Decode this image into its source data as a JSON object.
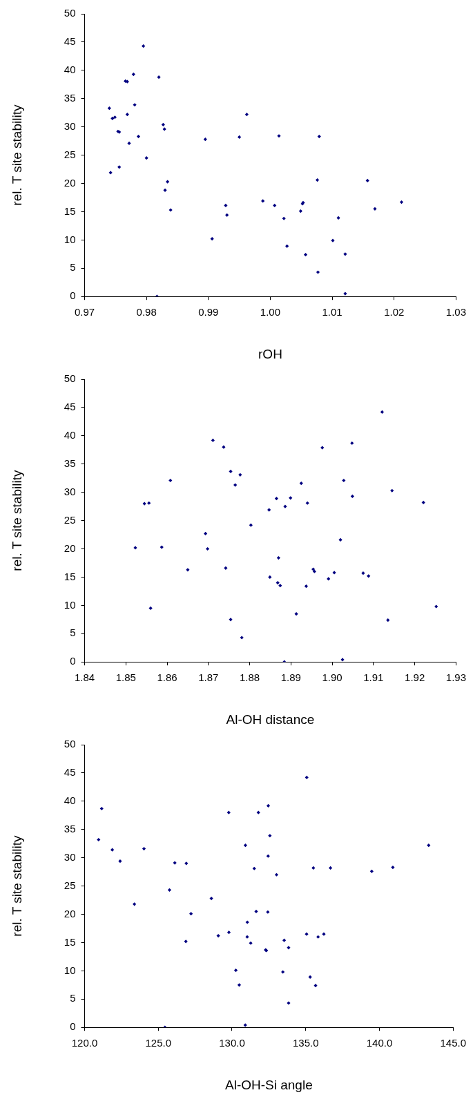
{
  "chart_data": [
    {
      "type": "scatter",
      "xlabel": "rOH",
      "ylabel": "rel. T site stability",
      "color": "#000080",
      "marker": "diamond",
      "grid": false,
      "legend": false,
      "x": [
        0.974,
        0.9745,
        0.9749,
        0.9742,
        0.9754,
        0.9756,
        0.9756,
        0.9766,
        0.9769,
        0.9769,
        0.9772,
        0.9779,
        0.9781,
        0.9787,
        0.9795,
        0.98,
        0.9817,
        0.982,
        0.9827,
        0.9829,
        0.983,
        0.9834,
        0.9839,
        0.9895,
        0.9906,
        0.9928,
        0.993,
        0.995,
        0.9962,
        0.9988,
        1.0007,
        1.0014,
        1.0022,
        1.0027,
        1.0049,
        1.0052,
        1.0053,
        1.0057,
        1.0076,
        1.0077,
        1.0079,
        1.0101,
        1.011,
        1.0121,
        1.0121,
        1.0157,
        1.0169,
        1.0212
      ],
      "values": [
        33.3,
        31.5,
        31.7,
        21.9,
        29.2,
        29.1,
        22.9,
        38.1,
        38.0,
        32.2,
        27.1,
        39.3,
        33.9,
        28.3,
        44.3,
        24.5,
        0,
        38.8,
        30.4,
        29.6,
        18.8,
        20.3,
        15.3,
        27.8,
        10.2,
        16.1,
        14.4,
        28.2,
        32.2,
        16.9,
        16.1,
        28.4,
        13.8,
        8.9,
        15.1,
        16.4,
        16.6,
        7.4,
        20.6,
        4.3,
        28.3,
        9.9,
        13.9,
        0.5,
        7.5,
        20.5,
        15.5,
        16.7
      ],
      "xlim": [
        0.97,
        1.03
      ],
      "xticks": [
        0.97,
        0.98,
        0.99,
        {
          "value": 1,
          "label": "1.00"
        },
        1.01,
        1.02,
        1.03
      ],
      "ylim": [
        0,
        50
      ],
      "yticks": [
        0,
        5,
        10,
        15,
        20,
        25,
        30,
        35,
        40,
        45,
        50
      ]
    },
    {
      "type": "scatter",
      "xlabel": "Al-OH distance",
      "ylabel": "rel. T site stability",
      "color": "#000080",
      "marker": "diamond",
      "grid": false,
      "legend": false,
      "x": [
        1.8523,
        1.8545,
        1.8556,
        1.856,
        1.8587,
        1.8608,
        1.865,
        1.8693,
        1.8698,
        1.8711,
        1.8737,
        1.8742,
        1.8754,
        1.8754,
        1.8765,
        1.8777,
        1.8781,
        1.8803,
        1.8847,
        1.8849,
        1.8865,
        1.8868,
        1.887,
        1.8874,
        1.8884,
        1.8886,
        1.8899,
        1.8913,
        1.8925,
        1.8937,
        1.894,
        1.8954,
        1.8957,
        1.8976,
        1.8991,
        1.9005,
        1.902,
        1.9025,
        1.9028,
        1.9048,
        1.9049,
        1.9075,
        1.9088,
        1.9121,
        1.9135,
        1.9145,
        1.9221,
        1.9252
      ],
      "values": [
        20.2,
        28.0,
        28.1,
        9.5,
        20.3,
        32.1,
        16.3,
        22.7,
        20.0,
        39.2,
        38.0,
        16.6,
        33.7,
        7.5,
        31.3,
        33.1,
        4.3,
        24.2,
        26.9,
        15.0,
        28.9,
        14.0,
        18.4,
        13.5,
        0,
        27.5,
        29.0,
        8.5,
        31.6,
        13.4,
        28.1,
        16.4,
        16.0,
        37.9,
        14.7,
        15.8,
        21.6,
        0.4,
        32.1,
        38.7,
        29.3,
        15.7,
        15.2,
        44.2,
        7.4,
        30.3,
        28.2,
        9.8
      ],
      "xlim": [
        1.84,
        1.93
      ],
      "xticks": [
        1.84,
        1.85,
        1.86,
        1.87,
        1.88,
        1.89,
        {
          "value": 1.9,
          "label": "1.90"
        },
        1.91,
        1.92,
        1.93
      ],
      "ylim": [
        0,
        50
      ],
      "yticks": [
        0,
        5,
        10,
        15,
        20,
        25,
        30,
        35,
        40,
        45,
        50
      ]
    },
    {
      "type": "scatter",
      "xlabel": "Al-OH-Si angle",
      "ylabel": "rel. T site stability",
      "color": "#000080",
      "marker": "diamond",
      "grid": false,
      "legend": false,
      "x": [
        120.95,
        121.16,
        121.88,
        122.41,
        123.38,
        124.03,
        125.45,
        125.76,
        126.12,
        126.87,
        126.9,
        127.22,
        128.6,
        129.07,
        129.78,
        129.79,
        130.26,
        130.49,
        130.91,
        130.9,
        131.03,
        131.04,
        131.27,
        131.51,
        131.64,
        131.79,
        132.28,
        132.33,
        132.43,
        132.45,
        132.46,
        132.57,
        133.02,
        133.45,
        133.54,
        133.84,
        133.84,
        135.06,
        135.07,
        135.3,
        135.52,
        135.67,
        135.84,
        136.23,
        136.68,
        139.48,
        140.91,
        143.34
      ],
      "values": [
        33.2,
        38.7,
        31.4,
        29.4,
        21.8,
        31.6,
        0,
        24.3,
        29.1,
        15.2,
        29.0,
        20.1,
        22.8,
        16.2,
        38.0,
        16.8,
        10.1,
        7.5,
        32.2,
        0.4,
        16.0,
        18.6,
        14.9,
        28.1,
        20.5,
        38.0,
        13.7,
        13.6,
        20.4,
        30.3,
        39.2,
        33.9,
        27.0,
        9.8,
        15.4,
        14.1,
        4.3,
        16.5,
        44.2,
        8.9,
        28.2,
        7.4,
        16.0,
        16.5,
        28.2,
        27.6,
        28.3,
        32.2
      ],
      "xlim": [
        120,
        145
      ],
      "xticks": [
        {
          "value": 120,
          "label": "120.0"
        },
        {
          "value": 125,
          "label": "125.0"
        },
        {
          "value": 130,
          "label": "130.0"
        },
        {
          "value": 135,
          "label": "135.0"
        },
        {
          "value": 140,
          "label": "140.0"
        },
        {
          "value": 145,
          "label": "145.0"
        }
      ],
      "ylim": [
        0,
        50
      ],
      "yticks": [
        0,
        5,
        10,
        15,
        20,
        25,
        30,
        35,
        40,
        45,
        50
      ]
    }
  ]
}
